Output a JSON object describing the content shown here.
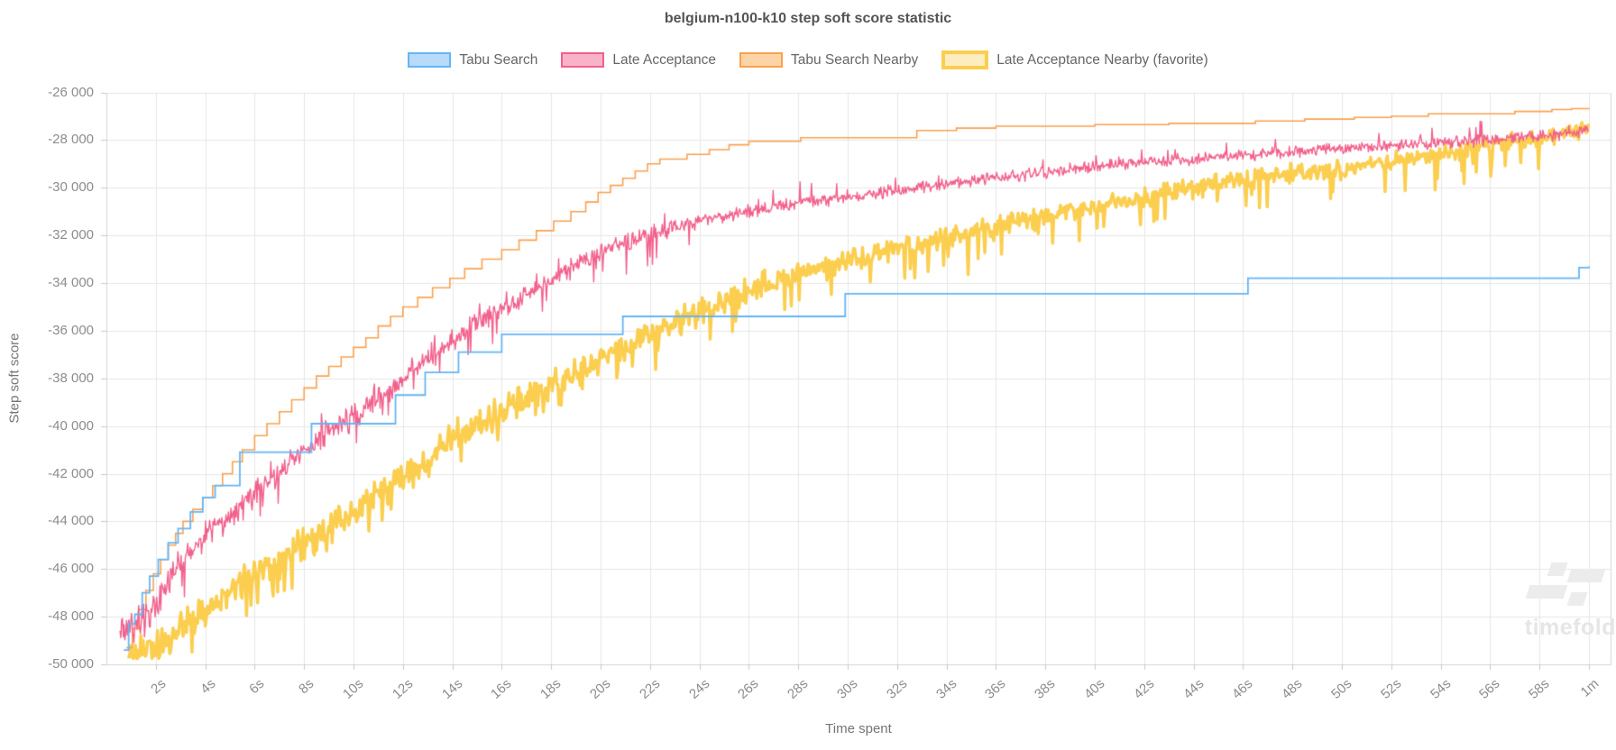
{
  "title": "belgium-n100-k10 step soft score statistic",
  "legend": {
    "items": [
      {
        "label": "Tabu Search",
        "fill": "#B7DBF8",
        "border": "#64B5F6",
        "border_width": 2,
        "favorite": false
      },
      {
        "label": "Late Acceptance",
        "fill": "#F9B3C8",
        "border": "#F2608C",
        "border_width": 2,
        "favorite": false
      },
      {
        "label": "Tabu Search Nearby",
        "fill": "#FCD4A5",
        "border": "#FAA14F",
        "border_width": 2,
        "favorite": false
      },
      {
        "label": "Late Acceptance Nearby (favorite)",
        "fill": "#FDEDBE",
        "border": "#FBCE4F",
        "border_width": 4,
        "favorite": true
      }
    ]
  },
  "axes": {
    "x": {
      "title": "Time spent",
      "tick_labels": [
        "2s",
        "4s",
        "6s",
        "8s",
        "10s",
        "12s",
        "14s",
        "16s",
        "18s",
        "20s",
        "22s",
        "24s",
        "26s",
        "28s",
        "30s",
        "32s",
        "34s",
        "36s",
        "38s",
        "40s",
        "42s",
        "44s",
        "46s",
        "48s",
        "50s",
        "52s",
        "54s",
        "56s",
        "58s",
        "1m"
      ],
      "tick_seconds": [
        2,
        4,
        6,
        8,
        10,
        12,
        14,
        16,
        18,
        20,
        22,
        24,
        26,
        28,
        30,
        32,
        34,
        36,
        38,
        40,
        42,
        44,
        46,
        48,
        50,
        52,
        54,
        56,
        58,
        60
      ],
      "min_seconds": 0,
      "max_seconds": 60
    },
    "y": {
      "title": "Step soft score",
      "tick_labels": [
        "-26 000",
        "-28 000",
        "-30 000",
        "-32 000",
        "-34 000",
        "-36 000",
        "-38 000",
        "-40 000",
        "-42 000",
        "-44 000",
        "-46 000",
        "-48 000",
        "-50 000"
      ],
      "tick_values": [
        -26000,
        -28000,
        -30000,
        -32000,
        -34000,
        -36000,
        -38000,
        -40000,
        -42000,
        -44000,
        -46000,
        -48000,
        -50000
      ],
      "min": -50000,
      "max": -26000
    }
  },
  "watermark": {
    "text": "timefold"
  },
  "style": {
    "grid_color": "#e6e6e6",
    "border_color": "#d4d4d4",
    "tick_color": "#c9c9c9"
  },
  "chart_data": {
    "type": "line",
    "title": "belgium-n100-k10 step soft score statistic",
    "xlabel": "Time spent",
    "ylabel": "Step soft score",
    "x_unit": "seconds",
    "xlim": [
      0,
      61
    ],
    "ylim": [
      -50000,
      -26000
    ],
    "grid": true,
    "legend_position": "top",
    "series": [
      {
        "name": "Tabu Search",
        "color": "#64B5F6",
        "style": "step",
        "line_width": 1.8,
        "points": [
          [
            0.7,
            -49400
          ],
          [
            0.9,
            -48300
          ],
          [
            1.15,
            -47900
          ],
          [
            1.45,
            -47000
          ],
          [
            1.75,
            -46300
          ],
          [
            2.1,
            -45600
          ],
          [
            2.5,
            -44900
          ],
          [
            2.9,
            -44300
          ],
          [
            3.4,
            -43600
          ],
          [
            3.9,
            -43000
          ],
          [
            4.4,
            -42500
          ],
          [
            5.4,
            -41100
          ],
          [
            8.3,
            -39900
          ],
          [
            11.7,
            -38700
          ],
          [
            12.9,
            -37750
          ],
          [
            14.25,
            -36900
          ],
          [
            16.0,
            -36150
          ],
          [
            20.9,
            -35400
          ],
          [
            29.9,
            -34450
          ],
          [
            46.2,
            -33800
          ],
          [
            59.6,
            -33350
          ],
          [
            60,
            -33300
          ]
        ]
      },
      {
        "name": "Late Acceptance",
        "color": "#F2608C",
        "style": "noisy",
        "line_width": 1.4,
        "sample_step": 0.033,
        "noise": {
          "seed": 12345,
          "amp_start": 750,
          "amp_end": 300,
          "amp_end_t": 30,
          "down_spike_prob": 0.05,
          "down_spike_max": 900,
          "down_spike_until": 24,
          "up_spike_prob": 0.03,
          "up_spike_max": 500,
          "floor": -49650
        },
        "trend": [
          [
            0.55,
            -48800
          ],
          [
            1,
            -48400
          ],
          [
            1.5,
            -48000
          ],
          [
            2,
            -47500
          ],
          [
            2.5,
            -46600
          ],
          [
            3,
            -45800
          ],
          [
            3.5,
            -45200
          ],
          [
            4,
            -44700
          ],
          [
            4.5,
            -44200
          ],
          [
            5,
            -43800
          ],
          [
            6,
            -42900
          ],
          [
            7,
            -42000
          ],
          [
            8,
            -41000
          ],
          [
            9,
            -40200
          ],
          [
            10,
            -39600
          ],
          [
            11,
            -38800
          ],
          [
            12,
            -38000
          ],
          [
            13,
            -37200
          ],
          [
            14,
            -36400
          ],
          [
            15,
            -35700
          ],
          [
            16,
            -35100
          ],
          [
            17,
            -34500
          ],
          [
            18,
            -33900
          ],
          [
            19,
            -33300
          ],
          [
            20,
            -32700
          ],
          [
            21,
            -32300
          ],
          [
            22,
            -32000
          ],
          [
            24,
            -31400
          ],
          [
            26,
            -31000
          ],
          [
            28,
            -30650
          ],
          [
            30,
            -30400
          ],
          [
            32,
            -30100
          ],
          [
            34,
            -29850
          ],
          [
            36,
            -29600
          ],
          [
            38,
            -29350
          ],
          [
            40,
            -29100
          ],
          [
            42,
            -28950
          ],
          [
            44,
            -28800
          ],
          [
            46,
            -28650
          ],
          [
            48,
            -28500
          ],
          [
            50,
            -28350
          ],
          [
            52,
            -28250
          ],
          [
            54,
            -28100
          ],
          [
            56,
            -28000
          ],
          [
            58,
            -27850
          ],
          [
            59,
            -27750
          ],
          [
            60,
            -27550
          ]
        ]
      },
      {
        "name": "Tabu Search Nearby",
        "color": "#FAA14F",
        "style": "step",
        "line_width": 1.6,
        "points": [
          [
            0.8,
            -49300
          ],
          [
            1.05,
            -48500
          ],
          [
            1.3,
            -47700
          ],
          [
            1.6,
            -46900
          ],
          [
            1.9,
            -46200
          ],
          [
            2.2,
            -45600
          ],
          [
            2.5,
            -45000
          ],
          [
            2.8,
            -44500
          ],
          [
            3.1,
            -44000
          ],
          [
            3.5,
            -43500
          ],
          [
            3.9,
            -43000
          ],
          [
            4.3,
            -42500
          ],
          [
            4.7,
            -42000
          ],
          [
            5.1,
            -41500
          ],
          [
            5.5,
            -41000
          ],
          [
            6.0,
            -40400
          ],
          [
            6.5,
            -39900
          ],
          [
            7.0,
            -39400
          ],
          [
            7.5,
            -38900
          ],
          [
            8.0,
            -38400
          ],
          [
            8.5,
            -37900
          ],
          [
            9.0,
            -37500
          ],
          [
            9.5,
            -37100
          ],
          [
            10.0,
            -36700
          ],
          [
            10.5,
            -36300
          ],
          [
            11.0,
            -35800
          ],
          [
            11.5,
            -35400
          ],
          [
            12.0,
            -35000
          ],
          [
            12.6,
            -34600
          ],
          [
            13.2,
            -34200
          ],
          [
            13.9,
            -33800
          ],
          [
            14.5,
            -33400
          ],
          [
            15.2,
            -33000
          ],
          [
            16.0,
            -32600
          ],
          [
            16.7,
            -32200
          ],
          [
            17.4,
            -31800
          ],
          [
            18.1,
            -31400
          ],
          [
            18.8,
            -31000
          ],
          [
            19.4,
            -30600
          ],
          [
            19.9,
            -30200
          ],
          [
            20.4,
            -29900
          ],
          [
            20.9,
            -29600
          ],
          [
            21.4,
            -29300
          ],
          [
            21.9,
            -29000
          ],
          [
            22.4,
            -28800
          ],
          [
            23.5,
            -28600
          ],
          [
            24.4,
            -28400
          ],
          [
            25.2,
            -28200
          ],
          [
            26.0,
            -28050
          ],
          [
            28.1,
            -27900
          ],
          [
            32.8,
            -27600
          ],
          [
            34.4,
            -27500
          ],
          [
            36.0,
            -27420
          ],
          [
            40.0,
            -27350
          ],
          [
            43.0,
            -27300
          ],
          [
            46.5,
            -27200
          ],
          [
            48.5,
            -27120
          ],
          [
            50.5,
            -27050
          ],
          [
            52.0,
            -27000
          ],
          [
            53.5,
            -26900
          ],
          [
            57.0,
            -26800
          ],
          [
            58.5,
            -26720
          ],
          [
            59.3,
            -26680
          ],
          [
            60,
            -26650
          ]
        ]
      },
      {
        "name": "Late Acceptance Nearby (favorite)",
        "color": "#FBCE4F",
        "style": "noisy",
        "line_width": 3.5,
        "sample_step": 0.045,
        "noise": {
          "seed": 777,
          "amp_start": 850,
          "amp_end": 450,
          "amp_end_t": 45,
          "down_spike_prob": 0.09,
          "down_spike_max": 1100,
          "down_spike_until": 58,
          "up_spike_prob": 0.0,
          "up_spike_max": 0,
          "floor": -49750
        },
        "trend": [
          [
            0.9,
            -49550
          ],
          [
            1.5,
            -49450
          ],
          [
            2,
            -49200
          ],
          [
            2.5,
            -48800
          ],
          [
            3,
            -48400
          ],
          [
            4,
            -47800
          ],
          [
            5,
            -47000
          ],
          [
            6,
            -46300
          ],
          [
            7,
            -45600
          ],
          [
            8,
            -44900
          ],
          [
            9,
            -44200
          ],
          [
            10,
            -43500
          ],
          [
            11,
            -42800
          ],
          [
            12,
            -42100
          ],
          [
            13,
            -41300
          ],
          [
            14,
            -40500
          ],
          [
            15,
            -39900
          ],
          [
            16,
            -39400
          ],
          [
            17,
            -38800
          ],
          [
            18,
            -38200
          ],
          [
            19,
            -37700
          ],
          [
            20,
            -37200
          ],
          [
            21,
            -36700
          ],
          [
            22,
            -36200
          ],
          [
            23,
            -35700
          ],
          [
            24,
            -35200
          ],
          [
            25,
            -34750
          ],
          [
            26,
            -34300
          ],
          [
            27,
            -33900
          ],
          [
            28,
            -33600
          ],
          [
            29,
            -33300
          ],
          [
            30,
            -33050
          ],
          [
            31,
            -32800
          ],
          [
            32,
            -32550
          ],
          [
            33,
            -32350
          ],
          [
            34,
            -32150
          ],
          [
            35,
            -31900
          ],
          [
            36,
            -31650
          ],
          [
            37,
            -31400
          ],
          [
            38,
            -31150
          ],
          [
            39,
            -30950
          ],
          [
            40,
            -30780
          ],
          [
            41,
            -30600
          ],
          [
            42,
            -30400
          ],
          [
            43,
            -30200
          ],
          [
            44,
            -30000
          ],
          [
            45,
            -29800
          ],
          [
            46,
            -29650
          ],
          [
            47,
            -29500
          ],
          [
            48,
            -29400
          ],
          [
            49,
            -29300
          ],
          [
            50,
            -29200
          ],
          [
            51,
            -29050
          ],
          [
            52,
            -28900
          ],
          [
            53,
            -28750
          ],
          [
            54,
            -28600
          ],
          [
            55,
            -28400
          ],
          [
            56,
            -28200
          ],
          [
            57,
            -28050
          ],
          [
            58,
            -27900
          ],
          [
            59,
            -27700
          ],
          [
            60,
            -27550
          ]
        ]
      }
    ]
  }
}
